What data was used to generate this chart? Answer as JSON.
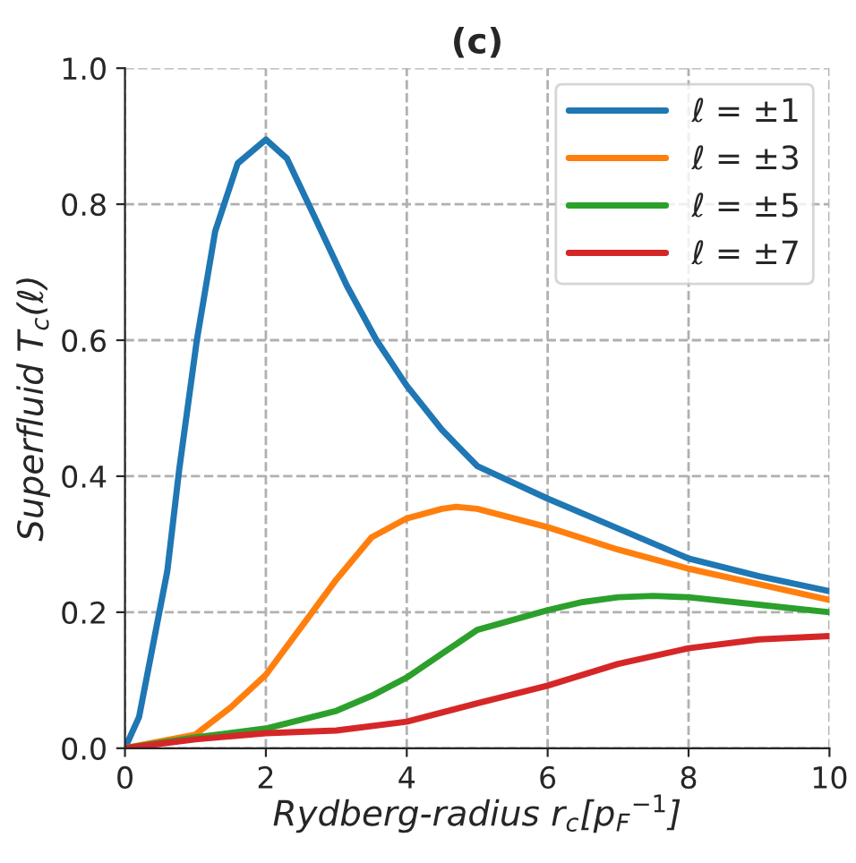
{
  "chart_data": {
    "type": "line",
    "title": "(c)",
    "xlabel": "Rydberg-radius r$_{c}$[p$_{F}$$^{−1}$]",
    "ylabel": "Superfluid T$_{c}$(ℓ)",
    "series": [
      {
        "name": "ℓ = ±1",
        "color": "#1f77b4",
        "x": [
          0,
          0.2,
          0.6,
          0.77,
          1.02,
          1.28,
          1.6,
          2.0,
          2.3,
          2.72,
          3.15,
          3.57,
          4.0,
          4.5,
          5.0,
          6.0,
          7.0,
          8.0,
          9.0,
          10.0
        ],
        "values": [
          0,
          0.046,
          0.26,
          0.41,
          0.6,
          0.76,
          0.86,
          0.895,
          0.867,
          0.775,
          0.68,
          0.6,
          0.533,
          0.468,
          0.415,
          0.367,
          0.323,
          0.279,
          0.253,
          0.231
        ]
      },
      {
        "name": "ℓ = ±3",
        "color": "#ff7f0e",
        "x": [
          0,
          1,
          1.5,
          2,
          2.5,
          3,
          3.5,
          4,
          4.5,
          4.7,
          5,
          6,
          7,
          8,
          9,
          10
        ],
        "values": [
          0,
          0.02,
          0.06,
          0.108,
          0.178,
          0.248,
          0.31,
          0.338,
          0.352,
          0.355,
          0.352,
          0.325,
          0.292,
          0.264,
          0.241,
          0.218
        ]
      },
      {
        "name": "ℓ = ±5",
        "color": "#2ca02c",
        "x": [
          0,
          1,
          2,
          3,
          3.5,
          4,
          4.5,
          5,
          6,
          6.5,
          7,
          7.5,
          8,
          9,
          10
        ],
        "values": [
          0,
          0.016,
          0.029,
          0.055,
          0.077,
          0.104,
          0.139,
          0.174,
          0.203,
          0.215,
          0.222,
          0.224,
          0.222,
          0.211,
          0.2
        ]
      },
      {
        "name": "ℓ = ±7",
        "color": "#d62728",
        "x": [
          0,
          1,
          2,
          3,
          4,
          5,
          6,
          7,
          8,
          9,
          10
        ],
        "values": [
          0,
          0.013,
          0.022,
          0.026,
          0.039,
          0.066,
          0.092,
          0.124,
          0.147,
          0.16,
          0.165
        ]
      }
    ],
    "xlim": [
      0,
      10
    ],
    "xticks": [
      0,
      2,
      4,
      6,
      8,
      10
    ],
    "ylim": [
      0,
      1.0
    ],
    "yticks": [
      {
        "value": 0,
        "label": "0.0"
      },
      {
        "value": 0.2,
        "label": "0.2"
      },
      {
        "value": 0.4,
        "label": "0.4"
      },
      {
        "value": 0.6,
        "label": "0.6"
      },
      {
        "value": 0.8,
        "label": "0.8"
      },
      {
        "value": 1.0,
        "label": "1.0"
      }
    ],
    "grid": true,
    "legend": "top right",
    "line_style": "solid"
  }
}
